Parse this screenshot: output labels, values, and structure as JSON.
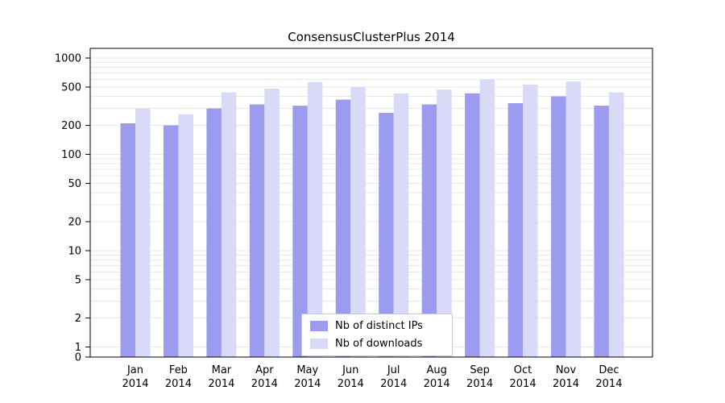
{
  "title": "ConsensusClusterPlus 2014",
  "chart_data": {
    "type": "bar",
    "title": "ConsensusClusterPlus 2014",
    "categories": [
      "Jan 2014",
      "Feb 2014",
      "Mar 2014",
      "Apr 2014",
      "May 2014",
      "Jun 2014",
      "Jul 2014",
      "Aug 2014",
      "Sep 2014",
      "Oct 2014",
      "Nov 2014",
      "Dec 2014"
    ],
    "series": [
      {
        "name": "Nb of distinct IPs",
        "color": "#9b9bef",
        "values": [
          210,
          200,
          300,
          330,
          320,
          370,
          270,
          330,
          430,
          340,
          400,
          320
        ]
      },
      {
        "name": "Nb of downloads",
        "color": "#d9d9f8",
        "values": [
          300,
          260,
          440,
          480,
          560,
          500,
          430,
          470,
          600,
          530,
          570,
          440
        ]
      }
    ],
    "yscale": "log",
    "yticks": [
      0,
      1,
      2,
      5,
      10,
      20,
      50,
      100,
      200,
      500,
      1000
    ],
    "ylim": [
      0,
      1000
    ],
    "xlabel": "",
    "ylabel": "",
    "grid": true,
    "legend_position": "bottom-center"
  }
}
